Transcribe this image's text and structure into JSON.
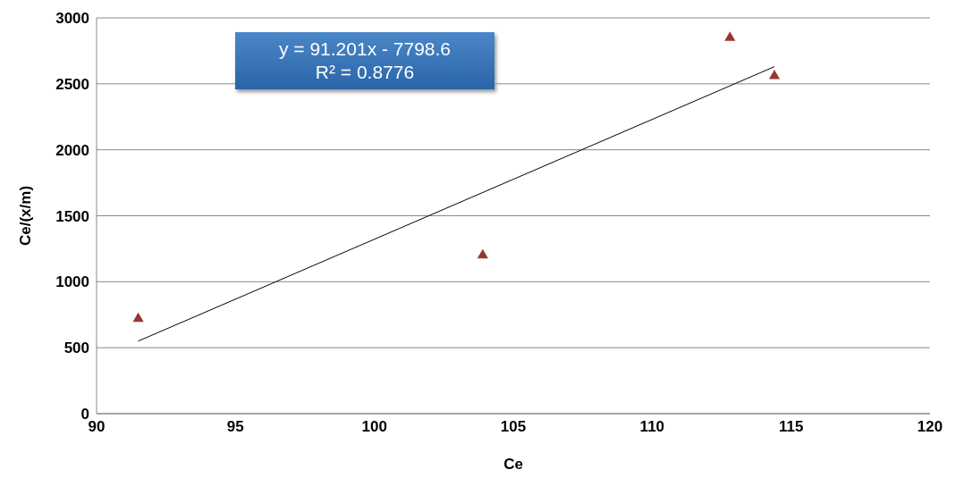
{
  "chart_data": {
    "type": "scatter",
    "xlabel": "Ce",
    "ylabel": "Ce/(x/m)",
    "xlim": [
      90,
      120
    ],
    "xticks": [
      90,
      95,
      100,
      105,
      110,
      115,
      120
    ],
    "ylim": [
      0,
      3000
    ],
    "yticks": [
      0,
      500,
      1000,
      1500,
      2000,
      2500,
      3000
    ],
    "grid": "y",
    "annotations": [
      "y = 91.201x - 7798.6",
      "R² = 0.8776"
    ],
    "series": [
      {
        "color": "#953735",
        "marker": "triangle",
        "x": [
          91.5,
          103.9,
          112.8,
          114.4
        ],
        "values": [
          720,
          1200,
          2850,
          2560
        ]
      },
      {
        "type": "line",
        "marker": "none",
        "color": "#000000",
        "x": [
          91.5,
          114.4
        ],
        "values": [
          550,
          2630
        ]
      }
    ]
  }
}
